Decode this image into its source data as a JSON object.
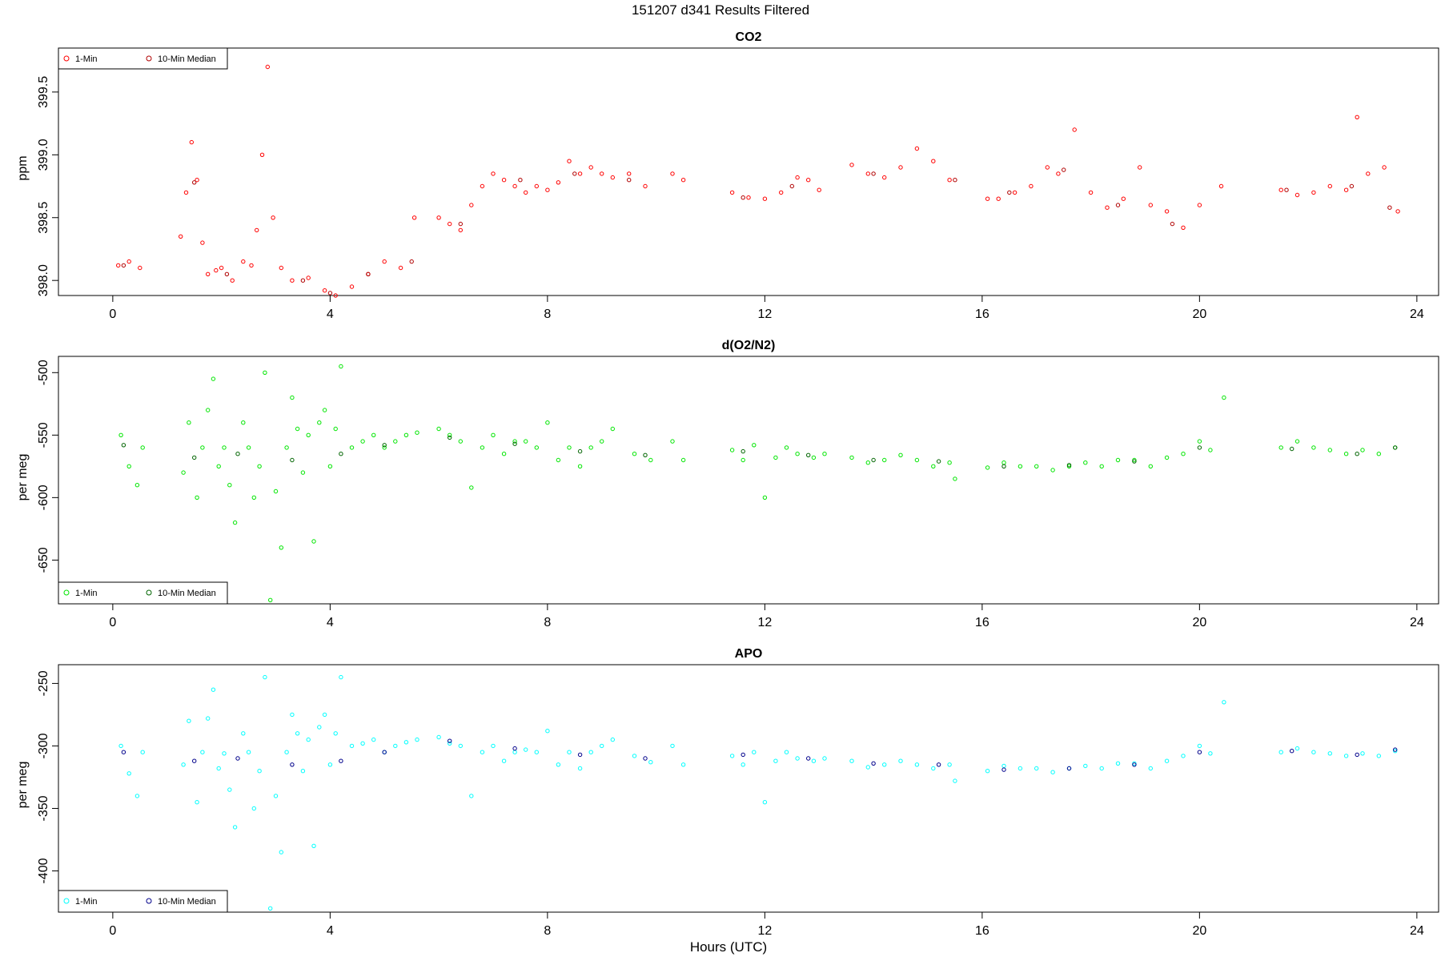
{
  "page_title": "151207   d341   Results Filtered",
  "x_axis_label": "Hours (UTC)",
  "chart_data": [
    {
      "type": "scatter",
      "title": "CO2",
      "ylabel": "ppm",
      "xlim": [
        -1.0,
        24.4
      ],
      "ylim": [
        397.88,
        399.85
      ],
      "xticks": [
        0,
        4,
        8,
        12,
        16,
        20,
        24
      ],
      "yticks": [
        398.0,
        398.5,
        399.0,
        399.5
      ],
      "ytick_labels": [
        "398.0",
        "398.5",
        "399.0",
        "399.5"
      ],
      "grid": false,
      "legend": {
        "placement": "top-left",
        "entries": [
          "1-Min",
          "10-Min Median"
        ]
      },
      "series": [
        {
          "name": "1-Min",
          "color": "#ff0000",
          "x": [
            0.1,
            0.3,
            0.5,
            1.25,
            1.35,
            1.45,
            1.55,
            1.65,
            1.75,
            1.9,
            2.0,
            2.2,
            2.4,
            2.55,
            2.65,
            2.75,
            2.85,
            2.95,
            3.1,
            3.3,
            3.6,
            3.9,
            4.1,
            4.4,
            4.7,
            5.0,
            5.3,
            5.55,
            6.0,
            6.2,
            6.4,
            6.6,
            6.8,
            7.0,
            7.2,
            7.4,
            7.6,
            7.8,
            8.0,
            8.2,
            8.4,
            8.6,
            8.8,
            9.0,
            9.2,
            9.5,
            9.8,
            10.3,
            10.5,
            11.4,
            11.7,
            12.0,
            12.3,
            12.6,
            12.8,
            13.0,
            13.6,
            13.9,
            14.2,
            14.5,
            14.8,
            15.1,
            15.4,
            16.1,
            16.3,
            16.6,
            16.9,
            17.2,
            17.4,
            17.7,
            18.0,
            18.3,
            18.6,
            18.9,
            19.1,
            19.4,
            19.7,
            20.0,
            20.4,
            21.5,
            21.8,
            22.1,
            22.4,
            22.7,
            22.9,
            23.1,
            23.4,
            23.65
          ],
          "y": [
            398.12,
            398.15,
            398.1,
            398.35,
            398.7,
            399.1,
            398.8,
            398.3,
            398.05,
            398.08,
            398.1,
            398.0,
            398.15,
            398.12,
            398.4,
            399.0,
            399.7,
            398.5,
            398.1,
            398.0,
            398.02,
            397.92,
            397.88,
            397.95,
            398.05,
            398.15,
            398.1,
            398.5,
            398.5,
            398.45,
            398.4,
            398.6,
            398.75,
            398.85,
            398.8,
            398.75,
            398.7,
            398.75,
            398.72,
            398.78,
            398.95,
            398.85,
            398.9,
            398.85,
            398.82,
            398.85,
            398.75,
            398.85,
            398.8,
            398.7,
            398.66,
            398.65,
            398.7,
            398.82,
            398.8,
            398.72,
            398.92,
            398.85,
            398.82,
            398.9,
            399.05,
            398.95,
            398.8,
            398.65,
            398.65,
            398.7,
            398.75,
            398.9,
            398.85,
            399.2,
            398.7,
            398.58,
            398.65,
            398.9,
            398.6,
            398.55,
            398.42,
            398.6,
            398.75,
            398.72,
            398.68,
            398.7,
            398.75,
            398.72,
            399.3,
            398.85,
            398.9,
            398.55
          ]
        },
        {
          "name": "10-Min Median",
          "color": "#b00000",
          "x": [
            0.2,
            1.5,
            2.1,
            3.5,
            4.0,
            4.7,
            5.5,
            6.4,
            7.5,
            8.5,
            9.5,
            11.6,
            12.5,
            14.0,
            15.5,
            16.5,
            17.5,
            18.5,
            19.5,
            21.6,
            22.8,
            23.5
          ],
          "y": [
            398.12,
            398.78,
            398.05,
            398.0,
            397.9,
            398.05,
            398.15,
            398.45,
            398.8,
            398.85,
            398.8,
            398.66,
            398.75,
            398.85,
            398.8,
            398.7,
            398.88,
            398.6,
            398.45,
            398.72,
            398.75,
            398.58
          ]
        }
      ]
    },
    {
      "type": "scatter",
      "title": "d(O2/N2)",
      "ylabel": "per meg",
      "xlim": [
        -1.0,
        24.4
      ],
      "ylim": [
        -685,
        -487
      ],
      "xticks": [
        0,
        4,
        8,
        12,
        16,
        20,
        24
      ],
      "yticks": [
        -500,
        -550,
        -600,
        -650
      ],
      "ytick_labels": [
        "-500",
        "-550",
        "-600",
        "-650"
      ],
      "grid": false,
      "legend": {
        "placement": "bottom-left",
        "entries": [
          "1-Min",
          "10-Min Median"
        ]
      },
      "series": [
        {
          "name": "1-Min",
          "color": "#00e600",
          "x": [
            0.15,
            0.3,
            0.45,
            0.55,
            1.3,
            1.4,
            1.55,
            1.65,
            1.75,
            1.85,
            1.95,
            2.05,
            2.15,
            2.25,
            2.4,
            2.5,
            2.6,
            2.7,
            2.8,
            2.9,
            3.0,
            3.1,
            3.2,
            3.3,
            3.4,
            3.5,
            3.6,
            3.7,
            3.8,
            3.9,
            4.0,
            4.1,
            4.2,
            4.4,
            4.6,
            4.8,
            5.0,
            5.2,
            5.4,
            5.6,
            6.0,
            6.2,
            6.4,
            6.6,
            6.8,
            7.0,
            7.2,
            7.4,
            7.6,
            7.8,
            8.0,
            8.2,
            8.4,
            8.6,
            8.8,
            9.0,
            9.2,
            9.6,
            9.9,
            10.3,
            10.5,
            11.4,
            11.6,
            11.8,
            12.0,
            12.2,
            12.4,
            12.6,
            12.9,
            13.1,
            13.6,
            13.9,
            14.2,
            14.5,
            14.8,
            15.1,
            15.4,
            15.5,
            16.1,
            16.4,
            16.7,
            17.0,
            17.3,
            17.6,
            17.9,
            18.2,
            18.5,
            18.8,
            19.1,
            19.4,
            19.7,
            20.0,
            20.2,
            20.45,
            21.5,
            21.8,
            22.1,
            22.4,
            22.7,
            23.0,
            23.3,
            23.6
          ],
          "y": [
            -550,
            -575,
            -590,
            -560,
            -580,
            -540,
            -600,
            -560,
            -530,
            -505,
            -575,
            -560,
            -590,
            -620,
            -540,
            -560,
            -600,
            -575,
            -500,
            -682,
            -595,
            -640,
            -560,
            -520,
            -545,
            -580,
            -550,
            -635,
            -540,
            -530,
            -575,
            -545,
            -495,
            -560,
            -555,
            -550,
            -560,
            -555,
            -550,
            -548,
            -545,
            -550,
            -555,
            -592,
            -560,
            -550,
            -565,
            -555,
            -555,
            -560,
            -540,
            -570,
            -560,
            -575,
            -560,
            -555,
            -545,
            -565,
            -570,
            -555,
            -570,
            -562,
            -570,
            -558,
            -600,
            -568,
            -560,
            -565,
            -568,
            -565,
            -568,
            -572,
            -570,
            -566,
            -570,
            -575,
            -572,
            -585,
            -576,
            -572,
            -575,
            -575,
            -578,
            -575,
            -572,
            -575,
            -570,
            -570,
            -575,
            -568,
            -565,
            -555,
            -562,
            -520,
            -560,
            -555,
            -560,
            -562,
            -565,
            -562,
            -565,
            -560
          ]
        },
        {
          "name": "10-Min Median",
          "color": "#006400",
          "x": [
            0.2,
            1.5,
            2.3,
            3.3,
            4.2,
            5.0,
            6.2,
            7.4,
            8.6,
            9.8,
            11.6,
            12.8,
            14.0,
            15.2,
            16.4,
            17.6,
            18.8,
            20.0,
            21.7,
            22.9,
            23.6
          ],
          "y": [
            -558,
            -568,
            -565,
            -570,
            -565,
            -558,
            -552,
            -557,
            -563,
            -566,
            -563,
            -566,
            -570,
            -571,
            -575,
            -574,
            -571,
            -560,
            -561,
            -565,
            -560
          ]
        }
      ]
    },
    {
      "type": "scatter",
      "title": "APO",
      "ylabel": "per meg",
      "xlim": [
        -1.0,
        24.4
      ],
      "ylim": [
        -433,
        -235
      ],
      "xticks": [
        0,
        4,
        8,
        12,
        16,
        20,
        24
      ],
      "yticks": [
        -250,
        -300,
        -350,
        -400
      ],
      "ytick_labels": [
        "-250",
        "-300",
        "-350",
        "-400"
      ],
      "grid": false,
      "legend": {
        "placement": "bottom-left",
        "entries": [
          "1-Min",
          "10-Min Median"
        ]
      },
      "series": [
        {
          "name": "1-Min",
          "color": "#00ffff",
          "x": [
            0.15,
            0.3,
            0.45,
            0.55,
            1.3,
            1.4,
            1.55,
            1.65,
            1.75,
            1.85,
            1.95,
            2.05,
            2.15,
            2.25,
            2.4,
            2.5,
            2.6,
            2.7,
            2.8,
            2.9,
            3.0,
            3.1,
            3.2,
            3.3,
            3.4,
            3.5,
            3.6,
            3.7,
            3.8,
            3.9,
            4.0,
            4.1,
            4.2,
            4.4,
            4.6,
            4.8,
            5.0,
            5.2,
            5.4,
            5.6,
            6.0,
            6.2,
            6.4,
            6.6,
            6.8,
            7.0,
            7.2,
            7.4,
            7.6,
            7.8,
            8.0,
            8.2,
            8.4,
            8.6,
            8.8,
            9.0,
            9.2,
            9.6,
            9.9,
            10.3,
            10.5,
            11.4,
            11.6,
            11.8,
            12.0,
            12.2,
            12.4,
            12.6,
            12.9,
            13.1,
            13.6,
            13.9,
            14.2,
            14.5,
            14.8,
            15.1,
            15.4,
            15.5,
            16.1,
            16.4,
            16.7,
            17.0,
            17.3,
            17.6,
            17.9,
            18.2,
            18.5,
            18.8,
            19.1,
            19.4,
            19.7,
            20.0,
            20.2,
            20.45,
            21.5,
            21.8,
            22.1,
            22.4,
            22.7,
            23.0,
            23.3,
            23.6
          ],
          "y": [
            -300,
            -322,
            -340,
            -305,
            -315,
            -280,
            -345,
            -305,
            -278,
            -255,
            -318,
            -306,
            -335,
            -365,
            -290,
            -305,
            -350,
            -320,
            -245,
            -430,
            -340,
            -385,
            -305,
            -275,
            -290,
            -320,
            -295,
            -380,
            -285,
            -275,
            -315,
            -290,
            -245,
            -300,
            -298,
            -295,
            -305,
            -300,
            -297,
            -295,
            -293,
            -298,
            -300,
            -340,
            -305,
            -300,
            -312,
            -305,
            -303,
            -305,
            -288,
            -315,
            -305,
            -318,
            -305,
            -300,
            -295,
            -308,
            -313,
            -300,
            -315,
            -308,
            -315,
            -305,
            -345,
            -312,
            -305,
            -310,
            -312,
            -310,
            -312,
            -317,
            -315,
            -312,
            -315,
            -318,
            -315,
            -328,
            -320,
            -316,
            -318,
            -318,
            -321,
            -318,
            -316,
            -318,
            -314,
            -314,
            -318,
            -312,
            -308,
            -300,
            -306,
            -265,
            -305,
            -302,
            -305,
            -306,
            -308,
            -306,
            -308,
            -304
          ]
        },
        {
          "name": "10-Min Median",
          "color": "#00008b",
          "x": [
            0.2,
            1.5,
            2.3,
            3.3,
            4.2,
            5.0,
            6.2,
            7.4,
            8.6,
            9.8,
            11.6,
            12.8,
            14.0,
            15.2,
            16.4,
            17.6,
            18.8,
            20.0,
            21.7,
            22.9,
            23.6
          ],
          "y": [
            -305,
            -312,
            -310,
            -315,
            -312,
            -305,
            -296,
            -302,
            -307,
            -310,
            -307,
            -310,
            -314,
            -315,
            -319,
            -318,
            -315,
            -305,
            -304,
            -307,
            -303
          ]
        }
      ]
    }
  ]
}
